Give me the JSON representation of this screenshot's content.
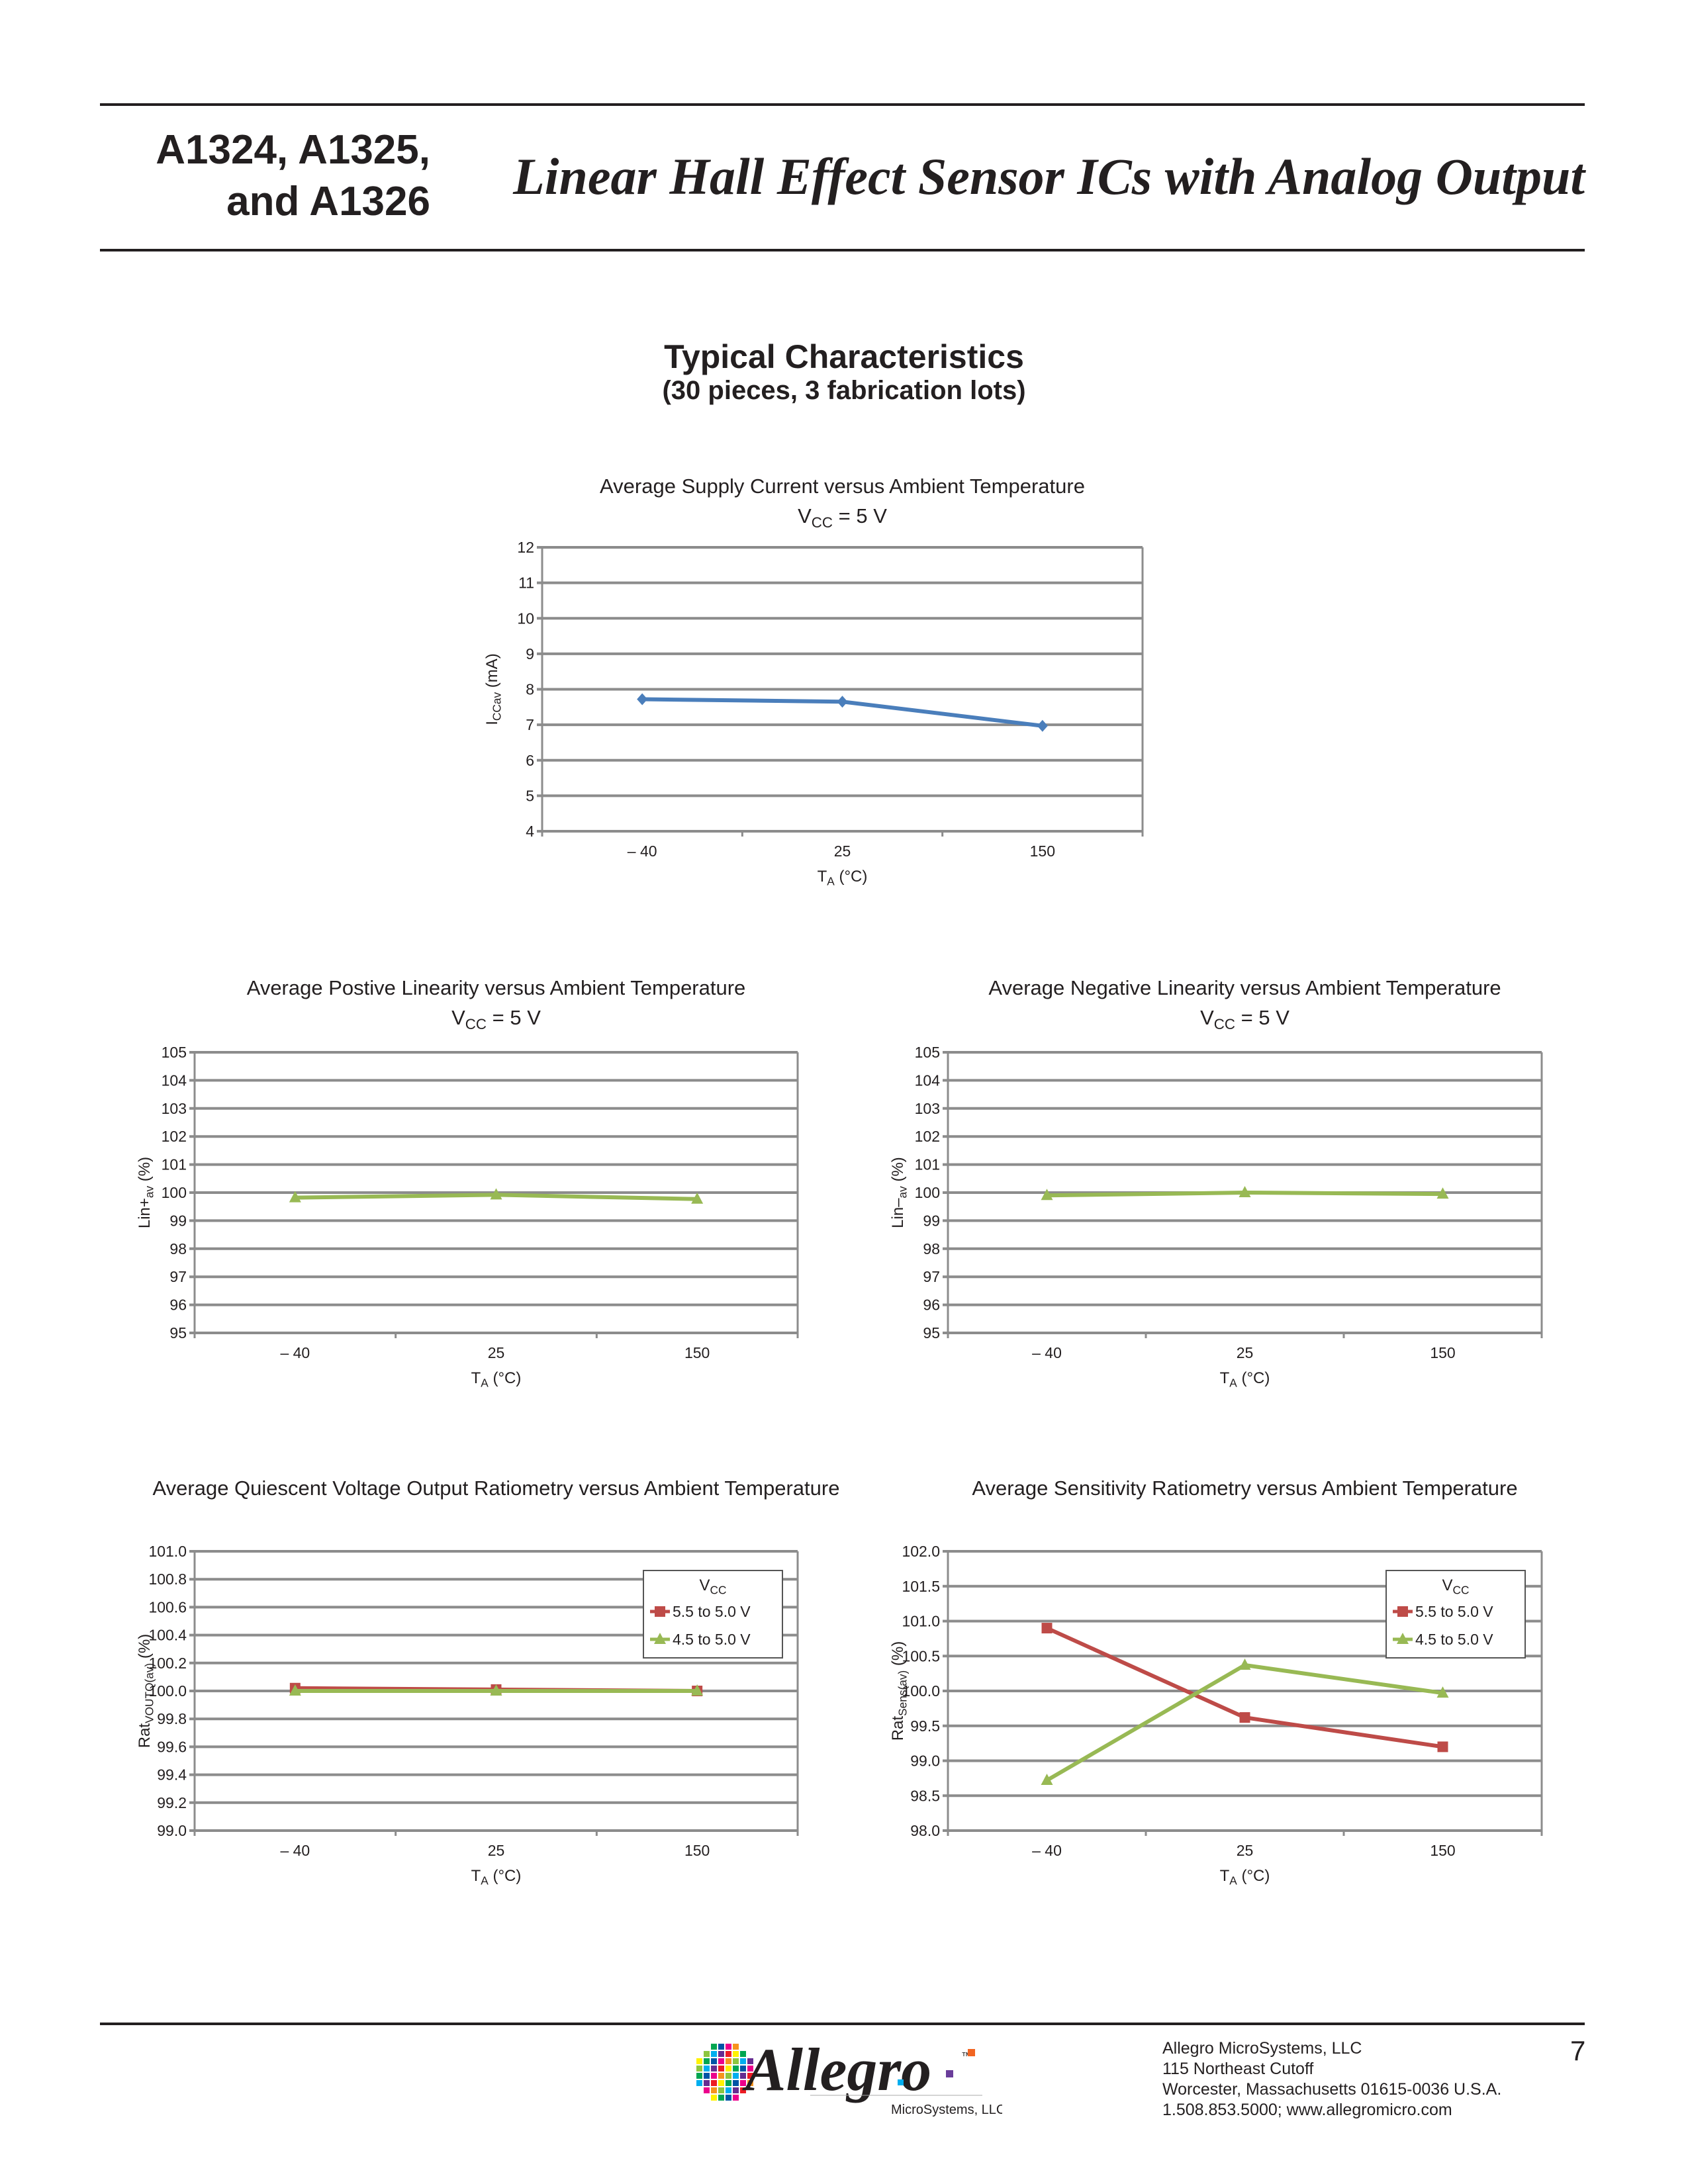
{
  "header": {
    "part_line1": "A1324, A1325,",
    "part_line2": "and A1326",
    "doc_title": "Linear Hall Effect Sensor ICs with Analog Output"
  },
  "section": {
    "title": "Typical Characteristics",
    "subtitle": "(30 pieces, 3 fabrication lots)"
  },
  "colors": {
    "blue": "#4a7ebb",
    "red": "#be4b48",
    "green": "#98b954",
    "grid": "#8c8c8c"
  },
  "chart_data": [
    {
      "type": "line",
      "title": "Average Supply Current versus Ambient Temperature",
      "subtitle": {
        "main": "V",
        "sub": "CC",
        "rest": " = 5 V"
      },
      "ylabel": {
        "main": "I",
        "sub": "CCav",
        "rest": " (mA)"
      },
      "xlabel": {
        "main": "T",
        "sub": "A",
        "rest": " (°C)"
      },
      "categories": [
        "– 40",
        "25",
        "150"
      ],
      "ylim": [
        4,
        12
      ],
      "ystep": 1,
      "ydecimals": 0,
      "grid": true,
      "series": [
        {
          "name": "ICCav",
          "color": "#4a7ebb",
          "marker": "diamond",
          "values": [
            7.72,
            7.65,
            6.97
          ]
        }
      ]
    },
    {
      "type": "line",
      "title": "Average Postive Linearity versus Ambient Temperature",
      "subtitle": {
        "main": "V",
        "sub": "CC",
        "rest": " = 5 V"
      },
      "ylabel": {
        "main": "Lin+",
        "sub": "av",
        "rest": " (%)"
      },
      "xlabel": {
        "main": "T",
        "sub": "A",
        "rest": " (°C)"
      },
      "categories": [
        "– 40",
        "25",
        "150"
      ],
      "ylim": [
        95,
        105
      ],
      "ystep": 1,
      "ydecimals": 0,
      "grid": true,
      "series": [
        {
          "name": "Lin+av",
          "color": "#98b954",
          "marker": "triangle",
          "values": [
            99.82,
            99.92,
            99.77
          ]
        }
      ]
    },
    {
      "type": "line",
      "title": "Average Negative Linearity versus Ambient Temperature",
      "subtitle": {
        "main": "V",
        "sub": "CC",
        "rest": " = 5 V"
      },
      "ylabel": {
        "main": "Lin–",
        "sub": "av",
        "rest": " (%)"
      },
      "xlabel": {
        "main": "T",
        "sub": "A",
        "rest": " (°C)"
      },
      "categories": [
        "– 40",
        "25",
        "150"
      ],
      "ylim": [
        95,
        105
      ],
      "ystep": 1,
      "ydecimals": 0,
      "grid": true,
      "series": [
        {
          "name": "Lin-av",
          "color": "#98b954",
          "marker": "triangle",
          "values": [
            99.9,
            100.0,
            99.95
          ]
        }
      ]
    },
    {
      "type": "line",
      "title": "Average Quiescent Voltage Output Ratiometry versus Ambient Temperature",
      "ylabel": {
        "main": "Rat",
        "sub": "VOUTQ(av)",
        "rest": " (%)"
      },
      "xlabel": {
        "main": "T",
        "sub": "A",
        "rest": " (°C)"
      },
      "categories": [
        "– 40",
        "25",
        "150"
      ],
      "ylim": [
        99.0,
        101.0
      ],
      "ystep": 0.2,
      "ydecimals": 1,
      "grid": true,
      "legend": {
        "title": {
          "main": "V",
          "sub": "CC"
        },
        "placement": "top-right"
      },
      "series": [
        {
          "name": "5.5 to 5.0 V",
          "color": "#be4b48",
          "marker": "square",
          "values": [
            100.02,
            100.01,
            100.0
          ]
        },
        {
          "name": "4.5 to 5.0 V",
          "color": "#98b954",
          "marker": "triangle",
          "values": [
            100.0,
            100.0,
            100.0
          ]
        }
      ]
    },
    {
      "type": "line",
      "title": "Average Sensitivity Ratiometry versus Ambient Temperature",
      "ylabel": {
        "main": "Rat",
        "sub": "Sens(av)",
        "rest": " (%)"
      },
      "xlabel": {
        "main": "T",
        "sub": "A",
        "rest": " (°C)"
      },
      "categories": [
        "– 40",
        "25",
        "150"
      ],
      "ylim": [
        98.0,
        102.0
      ],
      "ystep": 0.5,
      "ydecimals": 1,
      "grid": true,
      "legend": {
        "title": {
          "main": "V",
          "sub": "CC"
        },
        "placement": "top-right"
      },
      "series": [
        {
          "name": "5.5 to 5.0 V",
          "color": "#be4b48",
          "marker": "square",
          "values": [
            100.9,
            99.62,
            99.2
          ]
        },
        {
          "name": "4.5 to 5.0 V",
          "color": "#98b954",
          "marker": "triangle",
          "values": [
            98.72,
            100.37,
            99.97
          ]
        }
      ]
    }
  ],
  "footer": {
    "logo_text": "Allegro",
    "logo_sub": "MicroSystems, LLC",
    "logo_tm": "™",
    "company": "Allegro MicroSystems, LLC",
    "address1": "115 Northeast Cutoff",
    "address2": "Worcester, Massachusetts 01615-0036 U.S.A.",
    "contact": "1.508.853.5000; www.allegromicro.com",
    "page_number": "7"
  }
}
